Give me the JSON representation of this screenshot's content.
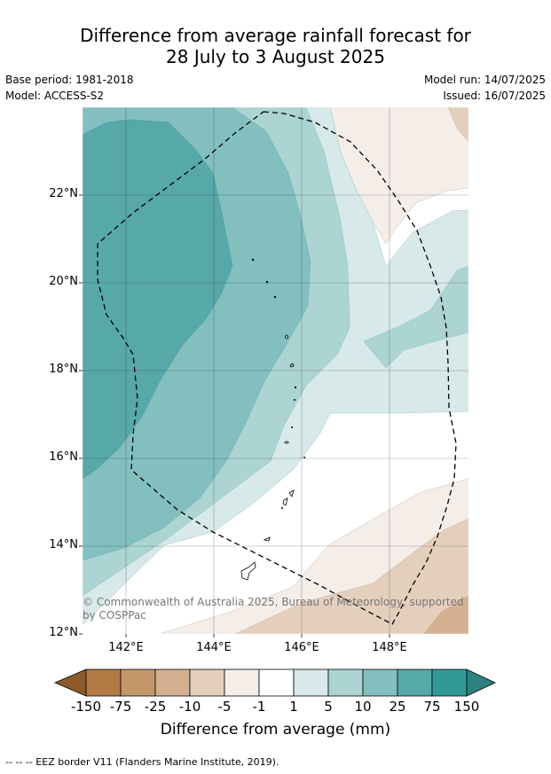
{
  "header": {
    "title_line1": "Difference from average rainfall forecast for",
    "title_line2": "28 July to 3 August 2025",
    "base_period": "Base period: 1981-2018",
    "model": "Model: ACCESS-S2",
    "model_run": "Model run: 14/07/2025",
    "issued": "Issued: 16/07/2025"
  },
  "map": {
    "lat_labels": [
      "22°N",
      "20°N",
      "18°N",
      "16°N",
      "14°N",
      "12°N"
    ],
    "lon_labels": [
      "142°E",
      "144°E",
      "146°E",
      "148°E"
    ],
    "credit_line1": "© Commonwealth of Australia 2025, Bureau of Meteorology, supported",
    "credit_line2": "by COSPPac",
    "eez_border": "dashed"
  },
  "colorbar": {
    "title": "Difference from average (mm)",
    "tick_labels": [
      "-150",
      "-75",
      "-25",
      "-10",
      "-5",
      "-1",
      "1",
      "5",
      "10",
      "25",
      "75",
      "150"
    ],
    "colors": [
      "#8c5a2b",
      "#b27a45",
      "#c39768",
      "#d3b190",
      "#e4cfbd",
      "#f4ede8",
      "#ffffff",
      "#d7e9e8",
      "#abd4d3",
      "#83bfbe",
      "#57a8a8",
      "#309a97",
      "#2b8280"
    ]
  },
  "footer": {
    "eez_note": "--  --  -- EEZ border V11 (Flanders Marine Institute, 2019)."
  }
}
